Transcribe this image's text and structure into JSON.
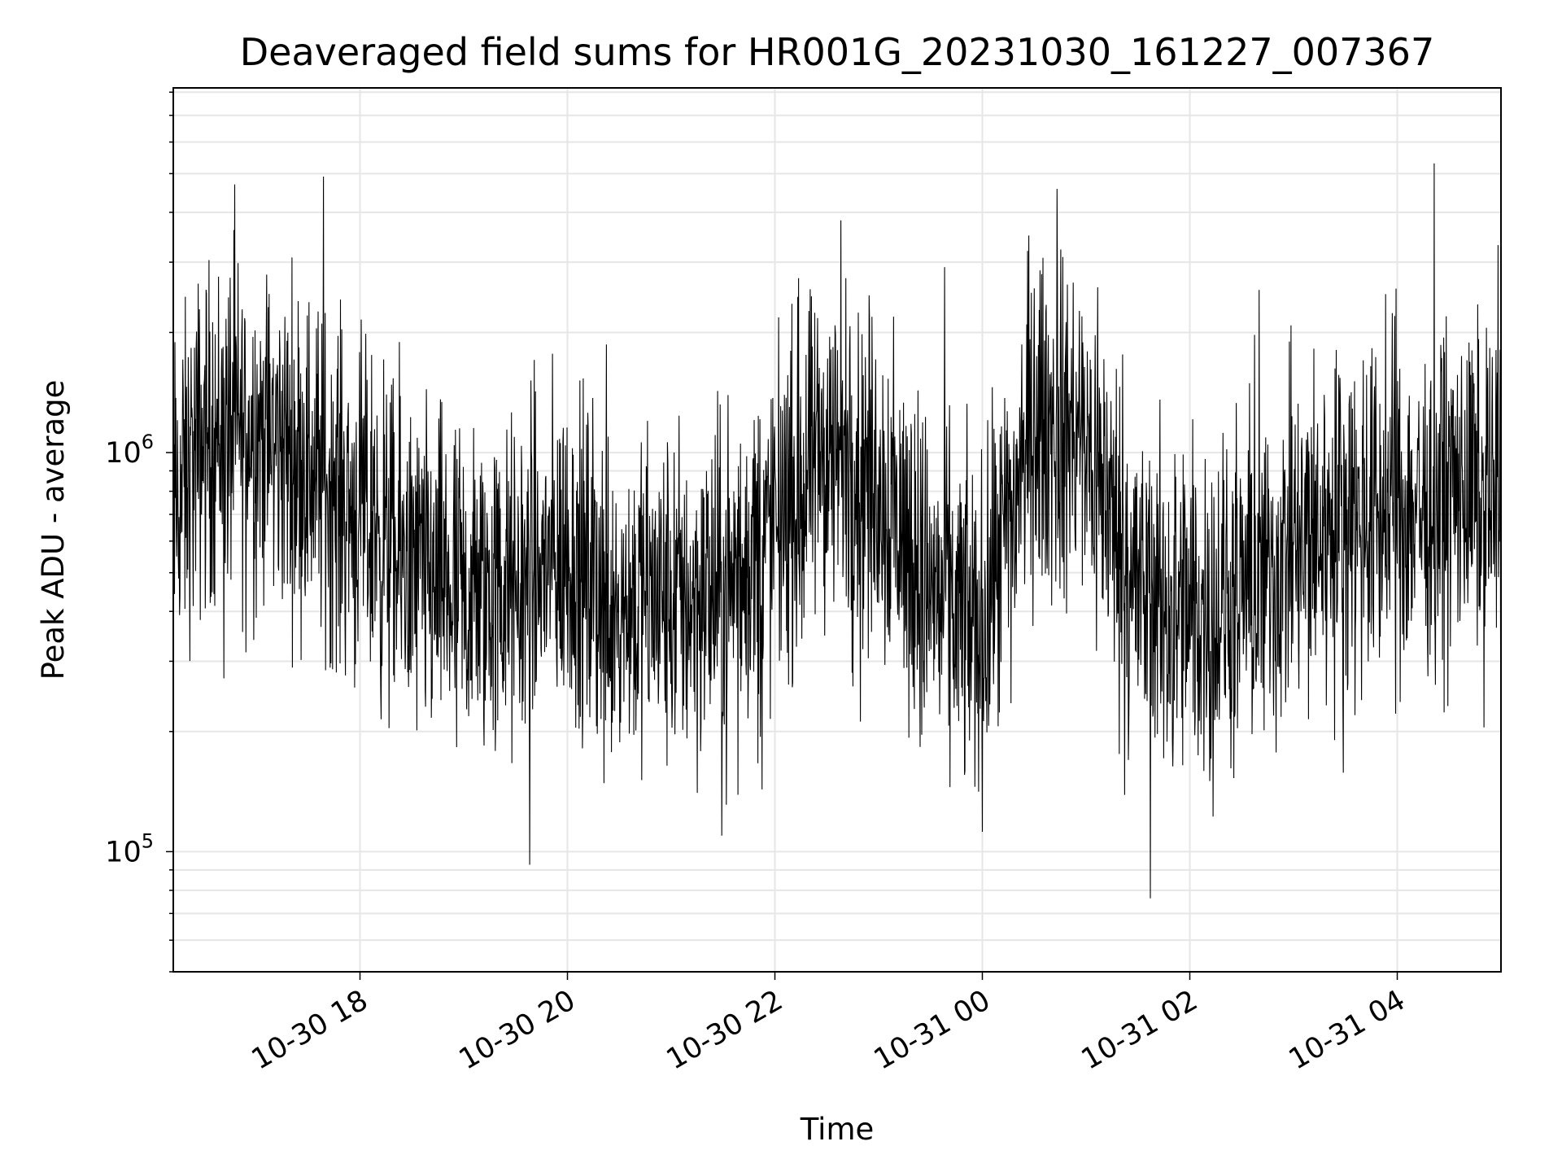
{
  "chart_data": {
    "type": "line",
    "title": "Deaveraged field sums for HR001G_20231030_161227_007367",
    "xlabel": "Time",
    "ylabel": "Peak ADU - average",
    "xlim": [
      "2023-10-30 16:12",
      "2023-10-31 05:00"
    ],
    "ylim": [
      50000,
      8200000
    ],
    "yscale": "log",
    "grid": true,
    "line_color": "#000000",
    "x_ticks": [
      "2023-10-30 18:00",
      "2023-10-30 20:00",
      "2023-10-30 22:00",
      "2023-10-31 00:00",
      "2023-10-31 02:00",
      "2023-10-31 04:00"
    ],
    "x_tick_labels": [
      "10-30 18",
      "10-30 20",
      "10-30 22",
      "10-31 00",
      "10-31 02",
      "10-31 04"
    ],
    "y_ticks": [
      100000,
      1000000
    ],
    "y_tick_labels": [
      {
        "base": "10",
        "exp": "5"
      },
      {
        "base": "10",
        "exp": "6"
      }
    ],
    "series": [
      {
        "x": [
          "2023-10-30 16:12",
          "2023-10-30 16:30",
          "2023-10-30 17:00",
          "2023-10-30 17:30",
          "2023-10-30 18:00",
          "2023-10-30 18:30",
          "2023-10-30 19:00",
          "2023-10-30 19:30",
          "2023-10-30 20:00",
          "2023-10-30 20:30",
          "2023-10-30 21:00",
          "2023-10-30 21:30",
          "2023-10-30 22:00",
          "2023-10-30 22:30",
          "2023-10-30 23:00",
          "2023-10-30 23:30",
          "2023-10-31 00:00",
          "2023-10-31 00:30",
          "2023-10-31 01:00",
          "2023-10-31 01:30",
          "2023-10-31 02:00",
          "2023-10-31 02:30",
          "2023-10-31 03:00",
          "2023-10-31 03:30",
          "2023-10-31 04:00",
          "2023-10-31 04:30",
          "2023-10-31 05:00"
        ],
        "y": [
          700000,
          1100000,
          1150000,
          950000,
          700000,
          500000,
          430000,
          450000,
          550000,
          430000,
          420000,
          450000,
          650000,
          1000000,
          850000,
          450000,
          350000,
          1200000,
          1050000,
          450000,
          380000,
          420000,
          550000,
          700000,
          720000,
          760000,
          820000
        ]
      }
    ]
  }
}
